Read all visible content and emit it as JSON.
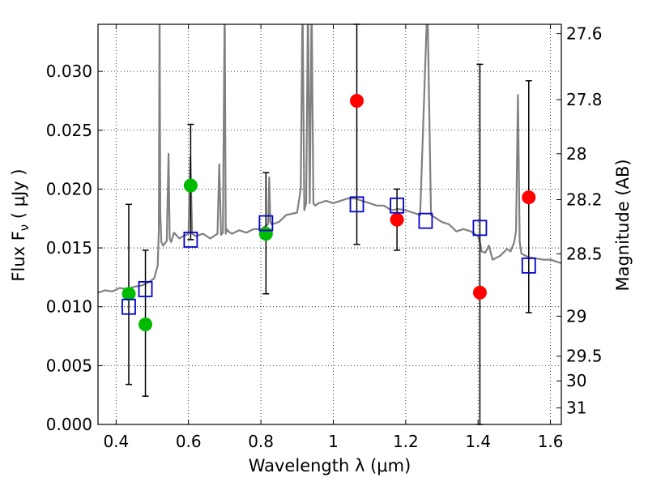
{
  "chart_data": {
    "type": "scatter",
    "xlabel": "Wavelength  λ (μm)",
    "ylabel": "Flux  F",
    "ylabel_sub": "ν",
    "ylabel_units": "  ( μJy )",
    "y2label": "Magnitude (AB)",
    "xlim": [
      0.35,
      1.63
    ],
    "ylim": [
      0.0,
      0.034
    ],
    "grid": true,
    "x_ticks": [
      0.4,
      0.6,
      0.8,
      1.0,
      1.2,
      1.4,
      1.6
    ],
    "x_tick_labels": [
      "0.4",
      "0.6",
      "0.8",
      "1",
      "1.2",
      "1.4",
      "1.6"
    ],
    "y_ticks": [
      0.0,
      0.005,
      0.01,
      0.015,
      0.02,
      0.025,
      0.03
    ],
    "y_tick_labels": [
      "0.000",
      "0.005",
      "0.010",
      "0.015",
      "0.020",
      "0.025",
      "0.030"
    ],
    "y2_ticks": [
      {
        "label": "27.6",
        "flux": 0.0332
      },
      {
        "label": "27.8",
        "flux": 0.0276
      },
      {
        "label": "28",
        "flux": 0.023
      },
      {
        "label": "28.2",
        "flux": 0.0191
      },
      {
        "label": "28.5",
        "flux": 0.0145
      },
      {
        "label": "29",
        "flux": 0.0092
      },
      {
        "label": "29.5",
        "flux": 0.0058
      },
      {
        "label": "30",
        "flux": 0.0037
      },
      {
        "label": "31",
        "flux": 0.0014
      }
    ],
    "series": [
      {
        "name": "model spectrum",
        "kind": "line",
        "color": "#808080",
        "x": [
          0.35,
          0.37,
          0.39,
          0.41,
          0.43,
          0.45,
          0.47,
          0.49,
          0.505,
          0.515,
          0.518,
          0.52,
          0.522,
          0.525,
          0.53,
          0.54,
          0.545,
          0.548,
          0.552,
          0.56,
          0.575,
          0.585,
          0.6,
          0.605,
          0.61,
          0.62,
          0.64,
          0.66,
          0.68,
          0.685,
          0.69,
          0.695,
          0.7,
          0.703,
          0.706,
          0.71,
          0.72,
          0.74,
          0.76,
          0.78,
          0.8,
          0.81,
          0.82,
          0.823,
          0.826,
          0.83,
          0.85,
          0.87,
          0.9,
          0.91,
          0.915,
          0.92,
          0.925,
          0.93,
          0.935,
          0.94,
          0.945,
          0.95,
          0.96,
          0.98,
          1.0,
          1.02,
          1.04,
          1.06,
          1.08,
          1.1,
          1.12,
          1.14,
          1.16,
          1.18,
          1.2,
          1.22,
          1.24,
          1.26,
          1.27,
          1.28,
          1.3,
          1.32,
          1.34,
          1.36,
          1.38,
          1.4,
          1.405,
          1.41,
          1.42,
          1.43,
          1.44,
          1.46,
          1.48,
          1.49,
          1.5,
          1.505,
          1.51,
          1.515,
          1.52,
          1.54,
          1.56,
          1.58,
          1.6,
          1.63
        ],
        "y": [
          0.0112,
          0.0114,
          0.0113,
          0.0116,
          0.0115,
          0.0117,
          0.0118,
          0.0121,
          0.0124,
          0.0135,
          0.0165,
          0.036,
          0.018,
          0.0155,
          0.0152,
          0.0156,
          0.023,
          0.0158,
          0.0155,
          0.0163,
          0.0158,
          0.016,
          0.0162,
          0.0227,
          0.0162,
          0.016,
          0.0162,
          0.0158,
          0.0162,
          0.0221,
          0.0161,
          0.0163,
          0.036,
          0.0162,
          0.0166,
          0.0164,
          0.0162,
          0.0165,
          0.0163,
          0.0166,
          0.0166,
          0.0168,
          0.017,
          0.021,
          0.0172,
          0.017,
          0.0172,
          0.0178,
          0.018,
          0.02,
          0.036,
          0.0182,
          0.0188,
          0.036,
          0.0188,
          0.036,
          0.0188,
          0.0186,
          0.0188,
          0.019,
          0.0188,
          0.019,
          0.0192,
          0.0192,
          0.019,
          0.0188,
          0.0186,
          0.0186,
          0.0182,
          0.0183,
          0.0182,
          0.018,
          0.0178,
          0.036,
          0.0178,
          0.0176,
          0.0172,
          0.017,
          0.0164,
          0.0166,
          0.0164,
          0.016,
          0.0155,
          0.0147,
          0.0146,
          0.0152,
          0.014,
          0.0143,
          0.0149,
          0.0147,
          0.0155,
          0.0165,
          0.028,
          0.0155,
          0.0145,
          0.0142,
          0.0141,
          0.014,
          0.014,
          0.0137
        ]
      },
      {
        "name": "observed (green)",
        "kind": "points",
        "color": "#00bb00",
        "points": [
          [
            0.435,
            0.0111
          ],
          [
            0.481,
            0.0085
          ],
          [
            0.606,
            0.0203
          ],
          [
            0.814,
            0.0162
          ]
        ]
      },
      {
        "name": "observed (red)",
        "kind": "points",
        "color": "#ff0000",
        "points": [
          [
            1.065,
            0.0275
          ],
          [
            1.176,
            0.0174
          ],
          [
            1.405,
            0.0112
          ],
          [
            1.54,
            0.0193
          ]
        ]
      },
      {
        "name": "model photometry",
        "kind": "squares",
        "color": "#0000cc",
        "points": [
          [
            0.435,
            0.01
          ],
          [
            0.481,
            0.0115
          ],
          [
            0.606,
            0.0157
          ],
          [
            0.814,
            0.0171
          ],
          [
            1.065,
            0.0187
          ],
          [
            1.176,
            0.0186
          ],
          [
            1.255,
            0.0173
          ],
          [
            1.405,
            0.0167
          ],
          [
            1.54,
            0.0135
          ]
        ]
      },
      {
        "name": "error bars",
        "kind": "errorbars",
        "color": "#000000",
        "bars": [
          [
            0.435,
            0.0034,
            0.0187
          ],
          [
            0.481,
            0.0024,
            0.0148
          ],
          [
            0.606,
            0.0157,
            0.0255
          ],
          [
            0.814,
            0.0111,
            0.0214
          ],
          [
            1.065,
            0.0153,
            0.034
          ],
          [
            1.176,
            0.0148,
            0.02
          ],
          [
            1.405,
            0.0,
            0.0306
          ],
          [
            1.54,
            0.0095,
            0.0292
          ]
        ]
      }
    ]
  }
}
